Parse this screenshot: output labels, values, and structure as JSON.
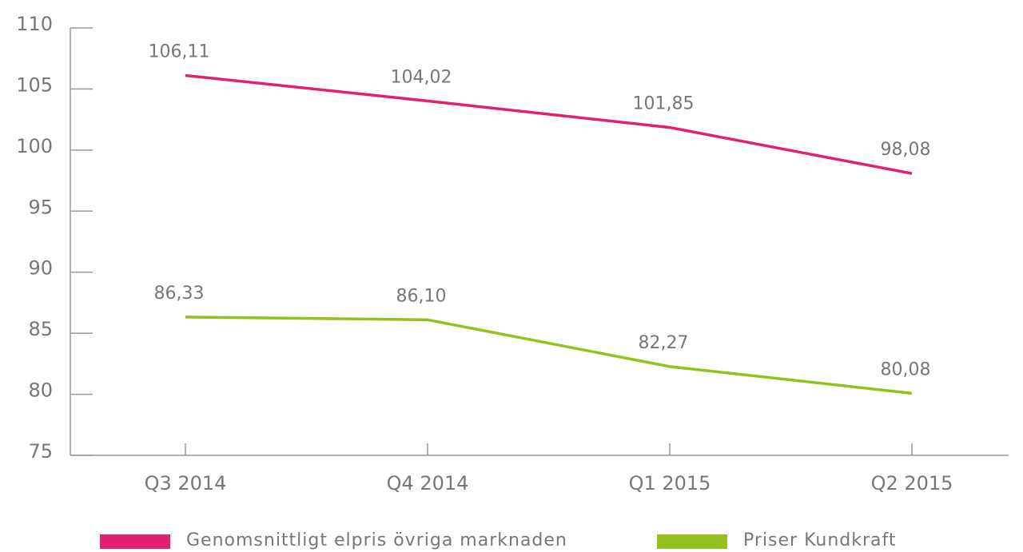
{
  "chart_data": {
    "type": "line",
    "categories": [
      "Q3 2014",
      "Q4 2014",
      "Q1 2015",
      "Q2 2015"
    ],
    "series": [
      {
        "name": "Genomsnittligt elpris övriga marknaden",
        "color": "#e3206f",
        "values": [
          106.11,
          104.02,
          101.85,
          98.08
        ],
        "value_labels": [
          "106,11",
          "104,02",
          "101,85",
          "98,08"
        ]
      },
      {
        "name": "Priser Kundkraft",
        "color": "#95c11f",
        "values": [
          86.33,
          86.1,
          82.27,
          80.08
        ],
        "value_labels": [
          "86,33",
          "86,10",
          "82,27",
          "80,08"
        ]
      }
    ],
    "ylim": [
      75,
      110
    ],
    "yticks": [
      75,
      80,
      85,
      90,
      95,
      100,
      105,
      110
    ]
  }
}
